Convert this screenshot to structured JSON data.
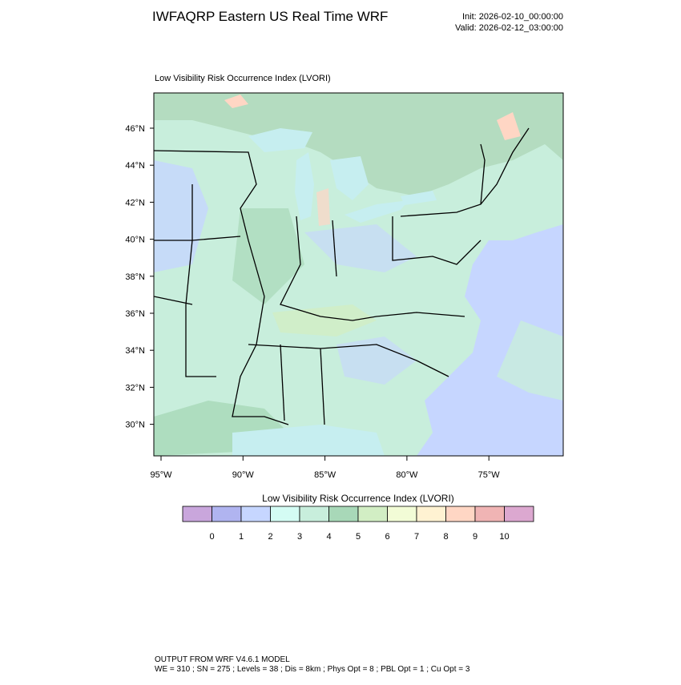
{
  "header": {
    "title": "IWFAQRP Eastern US Real Time WRF",
    "init": "Init: 2026-02-10_00:00:00",
    "valid": "Valid: 2026-02-12_03:00:00"
  },
  "map": {
    "title": "Low Visibility Risk Occurrence Index   (LVORI)",
    "lat_labels": [
      "46°N",
      "44°N",
      "42°N",
      "40°N",
      "38°N",
      "36°N",
      "34°N",
      "32°N",
      "30°N"
    ],
    "lon_labels": [
      "95°W",
      "90°W",
      "85°W",
      "80°W",
      "75°W"
    ]
  },
  "colorbar": {
    "title": "Low Visibility Risk Occurrence Index  (LVORI)",
    "colors": [
      "#c9a6dc",
      "#b0b4f0",
      "#c6d6ff",
      "#d4fcf4",
      "#c8eedc",
      "#a8d8b8",
      "#d2eec4",
      "#f2fcd6",
      "#fff2d2",
      "#ffd6c4",
      "#f0b4b4",
      "#dca8d0"
    ],
    "labels": [
      0,
      1,
      2,
      3,
      4,
      5,
      6,
      7,
      8,
      9,
      10
    ]
  },
  "footer": {
    "line1": "OUTPUT FROM WRF V4.6.1 MODEL",
    "line2": "WE = 310 ; SN = 275 ; Levels = 38 ; Dis = 8km ; Phys Opt = 8 ; PBL Opt = 1 ; Cu Opt = 3"
  }
}
